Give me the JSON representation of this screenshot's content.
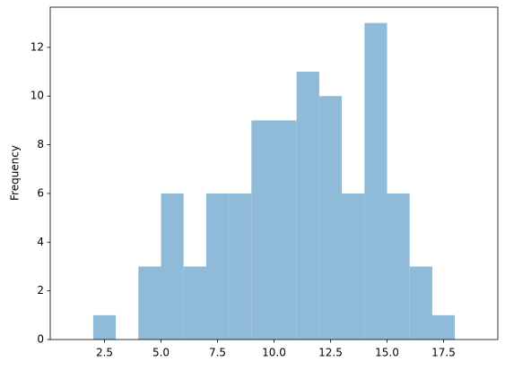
{
  "chart_data": {
    "type": "histogram",
    "ylabel": "Frequency",
    "bins": [
      1,
      2,
      3,
      4,
      5,
      6,
      7,
      8,
      9,
      10,
      11,
      12,
      13,
      14,
      15,
      16,
      17,
      18,
      19
    ],
    "values": [
      0,
      1,
      0,
      3,
      6,
      3,
      6,
      6,
      9,
      9,
      11,
      10,
      6,
      13,
      6,
      3,
      1,
      0
    ],
    "color": "#8fbbd9",
    "xlim": [
      0.1,
      19.9
    ],
    "xticks": [
      {
        "value": 2.5,
        "label": "2.5"
      },
      {
        "value": 5,
        "label": "5.0"
      },
      {
        "value": 7.5,
        "label": "7.5"
      },
      {
        "value": 10,
        "label": "10.0"
      },
      {
        "value": 12.5,
        "label": "12.5"
      },
      {
        "value": 15,
        "label": "15.0"
      },
      {
        "value": 17.5,
        "label": "17.5"
      }
    ],
    "ylim": [
      0,
      13.65
    ],
    "yticks": [
      0,
      2,
      4,
      6,
      8,
      10,
      12
    ]
  }
}
